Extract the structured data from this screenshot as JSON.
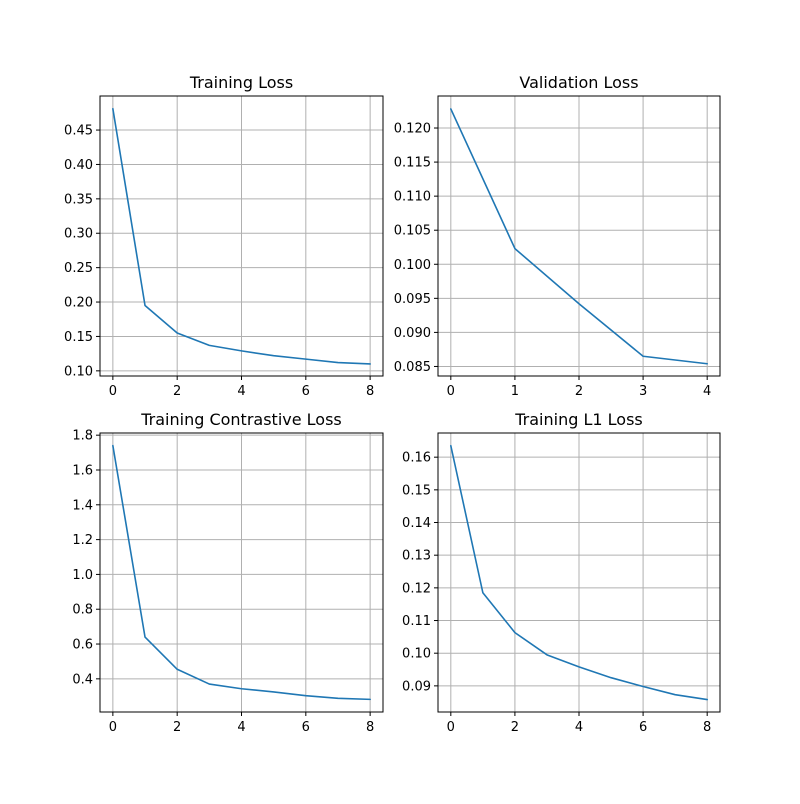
{
  "figure": {
    "background": "#ffffff",
    "line_color": "#1f77b4",
    "grid_color": "#b0b0b0"
  },
  "chart_data": [
    {
      "id": "training-loss",
      "type": "line",
      "title": "Training Loss",
      "xlabel": "",
      "ylabel": "",
      "grid": true,
      "legend": "none",
      "x": [
        0,
        1,
        2,
        3,
        4,
        5,
        6,
        7,
        8
      ],
      "series": [
        {
          "values": [
            0.481,
            0.195,
            0.155,
            0.137,
            0.129,
            0.122,
            0.117,
            0.112,
            0.11
          ]
        }
      ],
      "xlim": [
        -0.4,
        8.4
      ],
      "ylim": [
        0.0925,
        0.4995
      ],
      "xticks": [
        0,
        2,
        4,
        6,
        8
      ],
      "xtick_labels": [
        "0",
        "2",
        "4",
        "6",
        "8"
      ],
      "yticks": [
        0.1,
        0.15,
        0.2,
        0.25,
        0.3,
        0.35,
        0.4,
        0.45
      ],
      "ytick_labels": [
        "0.10",
        "0.15",
        "0.20",
        "0.25",
        "0.30",
        "0.35",
        "0.40",
        "0.45"
      ]
    },
    {
      "id": "validation-loss",
      "type": "line",
      "title": "Validation Loss",
      "xlabel": "",
      "ylabel": "",
      "grid": true,
      "legend": "none",
      "x": [
        0,
        1,
        2,
        3,
        4
      ],
      "series": [
        {
          "values": [
            0.1228,
            0.1023,
            0.0942,
            0.0865,
            0.0854
          ]
        }
      ],
      "xlim": [
        -0.2,
        4.2
      ],
      "ylim": [
        0.0836,
        0.1247
      ],
      "xticks": [
        0,
        1,
        2,
        3,
        4
      ],
      "xtick_labels": [
        "0",
        "1",
        "2",
        "3",
        "4"
      ],
      "yticks": [
        0.085,
        0.09,
        0.095,
        0.1,
        0.105,
        0.11,
        0.115,
        0.12
      ],
      "ytick_labels": [
        "0.085",
        "0.090",
        "0.095",
        "0.100",
        "0.105",
        "0.110",
        "0.115",
        "0.120"
      ]
    },
    {
      "id": "training-contrastive-loss",
      "type": "line",
      "title": "Training Contrastive Loss",
      "xlabel": "",
      "ylabel": "",
      "grid": true,
      "legend": "none",
      "x": [
        0,
        1,
        2,
        3,
        4,
        5,
        6,
        7,
        8
      ],
      "series": [
        {
          "values": [
            1.74,
            0.64,
            0.455,
            0.37,
            0.343,
            0.325,
            0.303,
            0.288,
            0.282
          ]
        }
      ],
      "xlim": [
        -0.4,
        8.4
      ],
      "ylim": [
        0.2095,
        1.8125
      ],
      "xticks": [
        0,
        2,
        4,
        6,
        8
      ],
      "xtick_labels": [
        "0",
        "2",
        "4",
        "6",
        "8"
      ],
      "yticks": [
        0.4,
        0.6,
        0.8,
        1.0,
        1.2,
        1.4,
        1.6,
        1.8
      ],
      "ytick_labels": [
        "0.4",
        "0.6",
        "0.8",
        "1.0",
        "1.2",
        "1.4",
        "1.6",
        "1.8"
      ]
    },
    {
      "id": "training-l1-loss",
      "type": "line",
      "title": "Training L1 Loss",
      "xlabel": "",
      "ylabel": "",
      "grid": true,
      "legend": "none",
      "x": [
        0,
        1,
        2,
        3,
        4,
        5,
        6,
        7,
        8
      ],
      "series": [
        {
          "values": [
            0.1635,
            0.1185,
            0.1063,
            0.0995,
            0.0958,
            0.0925,
            0.0898,
            0.0873,
            0.0858
          ]
        }
      ],
      "xlim": [
        -0.4,
        8.4
      ],
      "ylim": [
        0.082,
        0.1674
      ],
      "xticks": [
        0,
        2,
        4,
        6,
        8
      ],
      "xtick_labels": [
        "0",
        "2",
        "4",
        "6",
        "8"
      ],
      "yticks": [
        0.09,
        0.1,
        0.11,
        0.12,
        0.13,
        0.14,
        0.15,
        0.16
      ],
      "ytick_labels": [
        "0.09",
        "0.10",
        "0.11",
        "0.12",
        "0.13",
        "0.14",
        "0.15",
        "0.16"
      ]
    }
  ]
}
